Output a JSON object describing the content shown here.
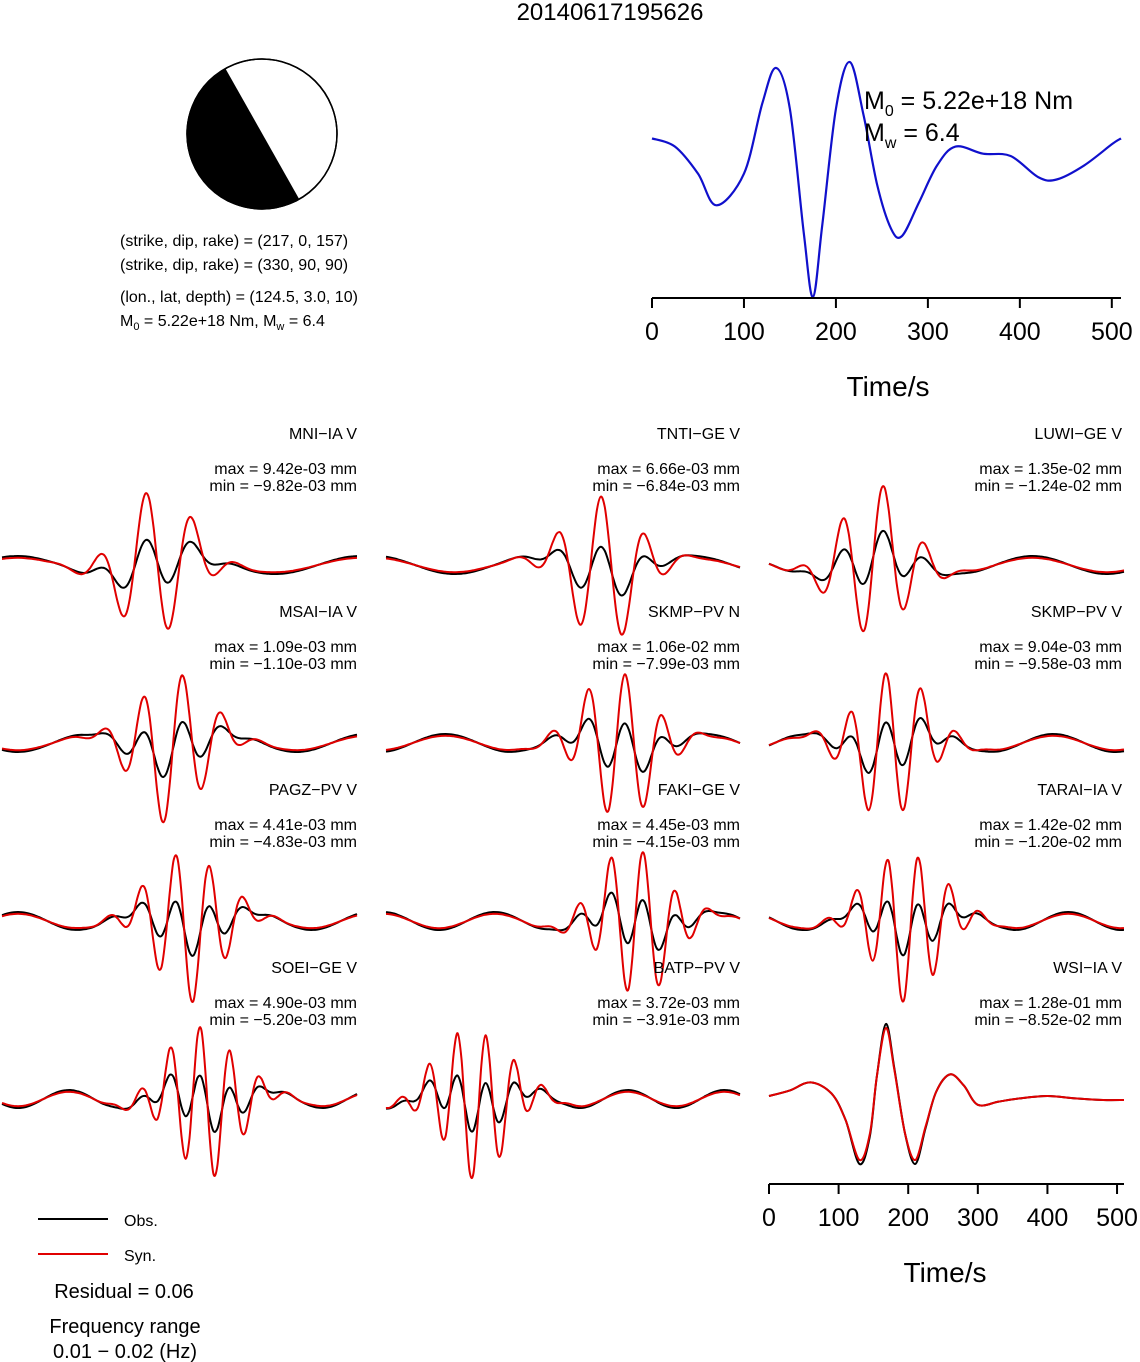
{
  "title": "20140617195626",
  "colors": {
    "observed": "#000000",
    "synthetic": "#e00000",
    "stf": "#1010cc",
    "beachball_fill": "#000000"
  },
  "mechanism": {
    "line1": "(strike, dip, rake) = (217, 0, 157)",
    "line2": "(strike, dip, rake) = (330, 90, 90)",
    "line3": "(lon., lat, depth) = (124.5, 3.0, 10)",
    "line4": {
      "m0_prefix": "M",
      "m0_sub": "0",
      "m0_value": " = 5.22e+18 Nm, M",
      "mw_sub": "w",
      "mw_value": " = 6.4"
    }
  },
  "stf_labels": {
    "m0": {
      "prefix": "M",
      "sub": "0",
      "value": " = 5.22e+18 Nm"
    },
    "mw": {
      "prefix": "M",
      "sub": "w",
      "value": " = 6.4"
    }
  },
  "legend": {
    "obs": "Obs.",
    "syn": "Syn."
  },
  "residual": "Residual = 0.06",
  "frequency": {
    "line1": "Frequency range",
    "line2": "0.01 − 0.02 (Hz)"
  },
  "stations": [
    {
      "name": "MNI−IA V",
      "max": "max = 9.42e-03 mm",
      "min": "min = −9.82e-03 mm"
    },
    {
      "name": "TNTI−GE V",
      "max": "max = 6.66e-03 mm",
      "min": "min = −6.84e-03 mm"
    },
    {
      "name": "LUWI−GE V",
      "max": "max = 1.35e-02 mm",
      "min": "min = −1.24e-02 mm"
    },
    {
      "name": "MSAI−IA V",
      "max": "max = 1.09e-03 mm",
      "min": "min = −1.10e-03 mm"
    },
    {
      "name": "SKMP−PV N",
      "max": "max = 1.06e-02 mm",
      "min": "min = −7.99e-03 mm"
    },
    {
      "name": "SKMP−PV V",
      "max": "max = 9.04e-03 mm",
      "min": "min = −9.58e-03 mm"
    },
    {
      "name": "PAGZ−PV V",
      "max": "max = 4.41e-03 mm",
      "min": "min = −4.83e-03 mm"
    },
    {
      "name": "FAKI−GE V",
      "max": "max = 4.45e-03 mm",
      "min": "min = −4.15e-03 mm"
    },
    {
      "name": "TARAI−IA V",
      "max": "max = 1.42e-02 mm",
      "min": "min = −1.20e-02 mm"
    },
    {
      "name": "SOEI−GE V",
      "max": "max = 4.90e-03 mm",
      "min": "min = −5.20e-03 mm"
    },
    {
      "name": "BATP−PV V",
      "max": "max = 3.72e-03 mm",
      "min": "min = −3.91e-03 mm"
    },
    {
      "name": "WSI−IA V",
      "max": "max = 1.28e-01 mm",
      "min": "min = −8.52e-02 mm"
    }
  ],
  "chart_data": [
    {
      "type": "line",
      "xlabel": "Time/s",
      "ylabel": "",
      "xlim": [
        0,
        510
      ],
      "xticks": [
        0,
        100,
        200,
        300,
        400,
        500
      ],
      "series": [
        {
          "x": [
            0,
            25,
            50,
            70,
            100,
            120,
            135,
            150,
            165,
            175,
            185,
            200,
            215,
            230,
            245,
            260,
            272,
            290,
            310,
            330,
            360,
            390,
            420,
            440,
            470,
            500,
            510
          ],
          "y": [
            0.35,
            0.28,
            0.05,
            -0.22,
            0.05,
            0.65,
            0.95,
            0.6,
            -0.45,
            -1.0,
            -0.4,
            0.6,
            1.0,
            0.55,
            -0.05,
            -0.42,
            -0.48,
            -0.2,
            0.12,
            0.28,
            0.22,
            0.2,
            0.02,
            0.0,
            0.12,
            0.3,
            0.35
          ]
        }
      ]
    },
    {
      "type": "line",
      "xlabel": "Time/s",
      "ylabel": "",
      "xlim": [
        0,
        510
      ],
      "xticks": [
        0,
        100,
        200,
        300,
        400,
        500
      ],
      "series": [
        {
          "name": "Obs.",
          "x": [
            0,
            30,
            60,
            90,
            110,
            130,
            145,
            155,
            168,
            180,
            195,
            210,
            225,
            240,
            260,
            280,
            300,
            330,
            360,
            400,
            440,
            480,
            510
          ],
          "y": [
            0.05,
            0.12,
            0.22,
            0.08,
            -0.25,
            -0.8,
            -0.45,
            0.3,
            0.95,
            0.4,
            -0.4,
            -0.8,
            -0.35,
            0.1,
            0.32,
            0.18,
            -0.06,
            -0.02,
            0.02,
            0.05,
            0.02,
            0.0,
            0.0
          ]
        },
        {
          "name": "Syn.",
          "x": [
            0,
            30,
            60,
            90,
            110,
            130,
            145,
            155,
            168,
            180,
            195,
            210,
            225,
            240,
            260,
            280,
            300,
            330,
            360,
            400,
            440,
            480,
            510
          ],
          "y": [
            0.05,
            0.12,
            0.22,
            0.08,
            -0.25,
            -0.75,
            -0.42,
            0.3,
            0.9,
            0.38,
            -0.4,
            -0.75,
            -0.33,
            0.1,
            0.32,
            0.18,
            -0.06,
            -0.02,
            0.02,
            0.05,
            0.02,
            0.0,
            0.0
          ]
        }
      ]
    }
  ]
}
